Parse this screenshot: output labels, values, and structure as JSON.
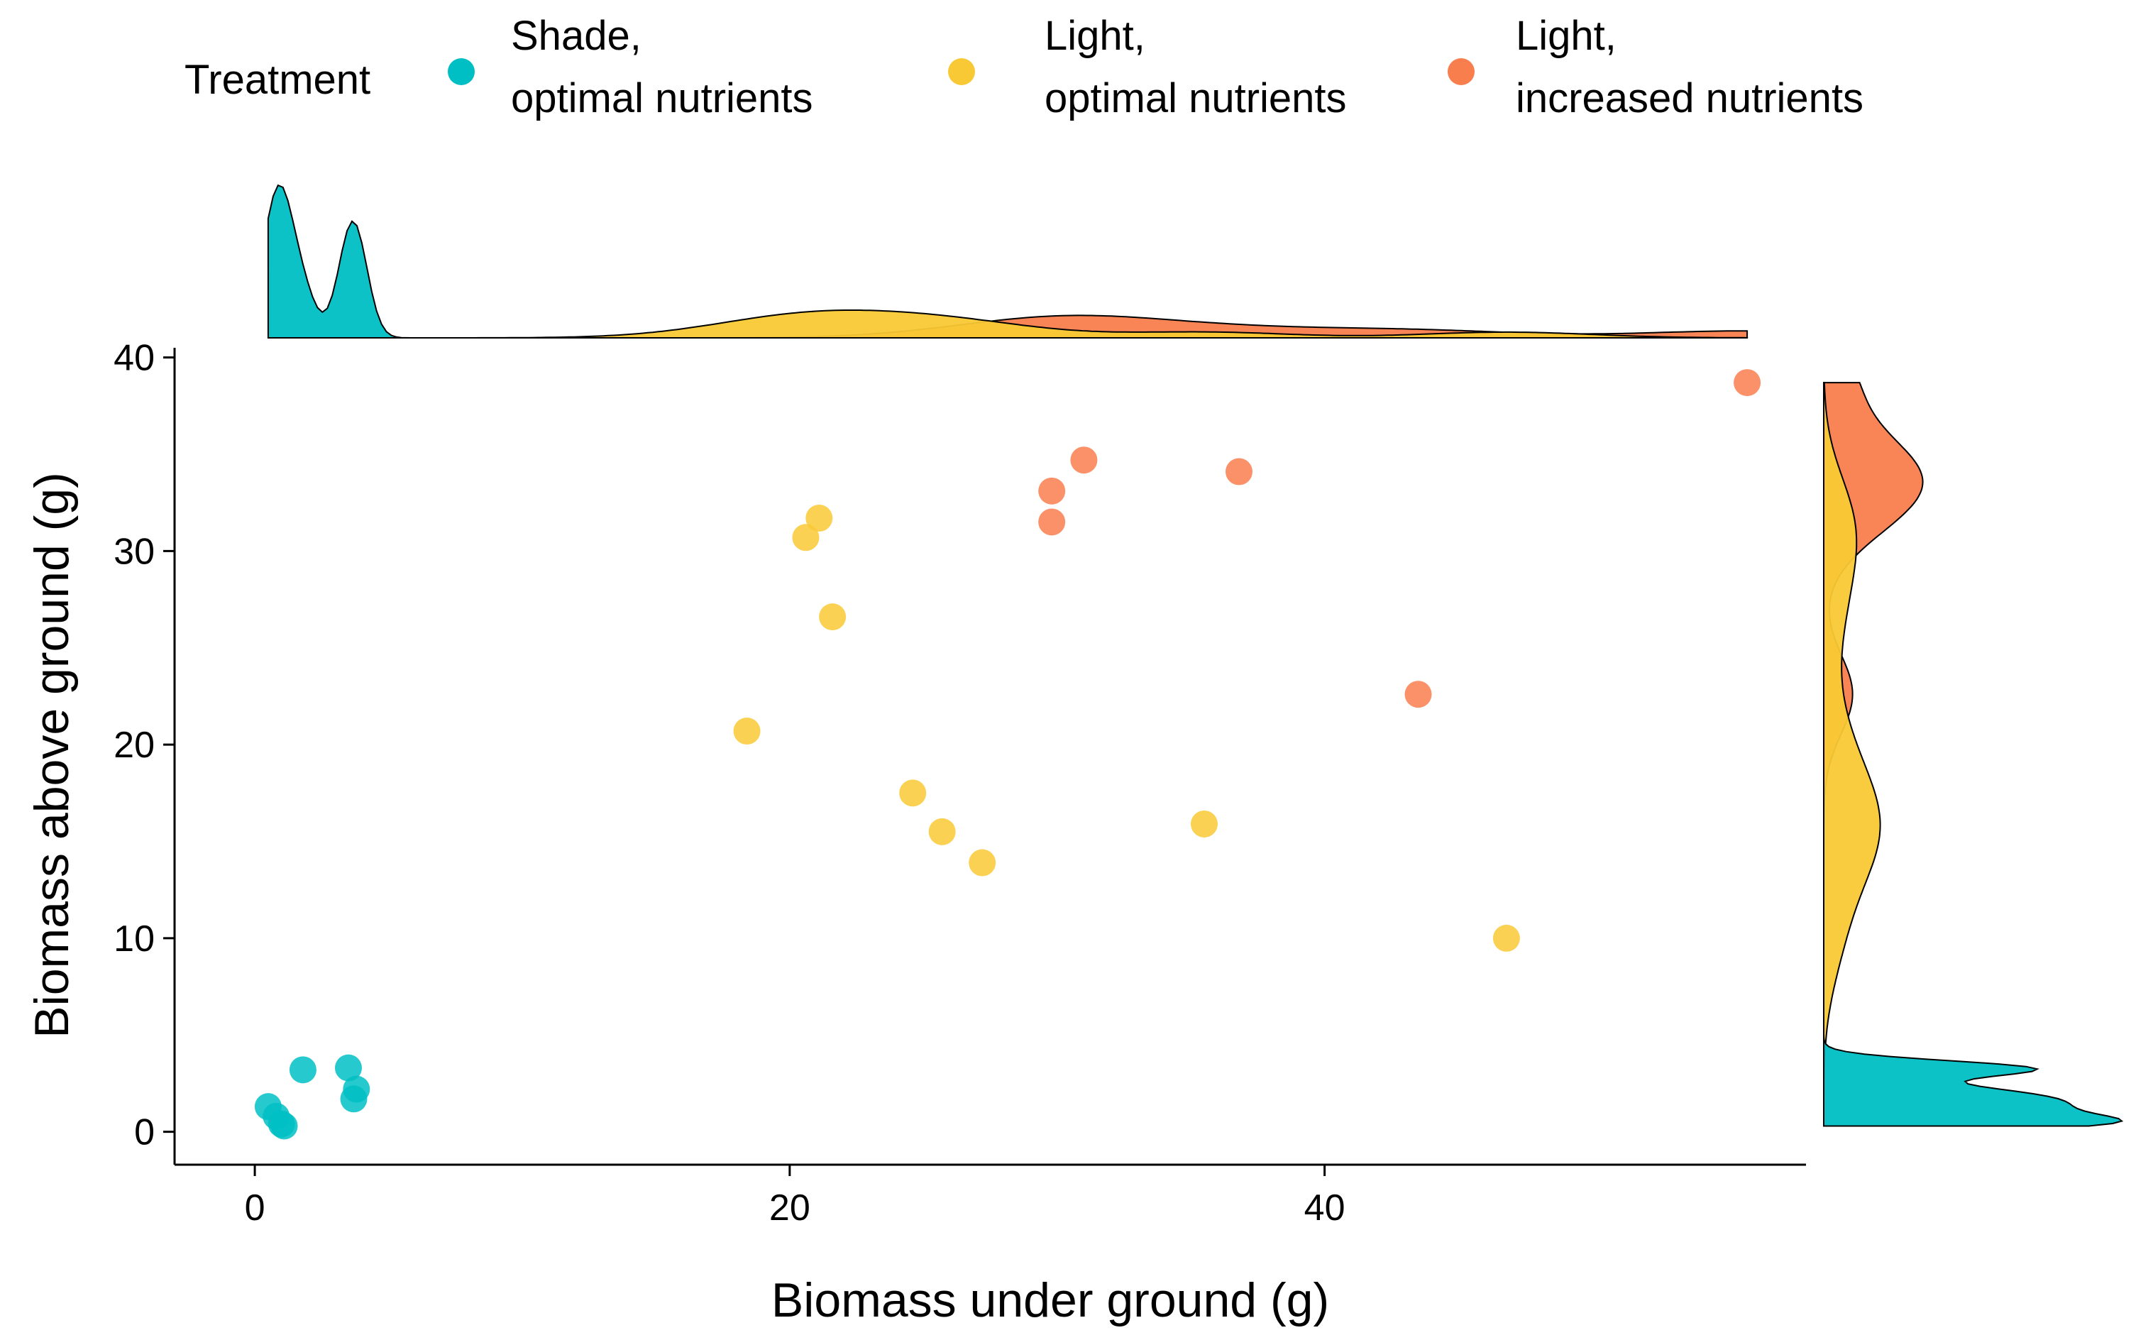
{
  "chart_data": {
    "type": "scatter",
    "title": "",
    "xlabel": "Biomass under ground (g)",
    "ylabel": "Biomass above ground (g)",
    "xlim": [
      -3,
      58
    ],
    "ylim": [
      -1.7,
      40.5
    ],
    "xticks": [
      0,
      20,
      40
    ],
    "yticks": [
      0,
      10,
      20,
      30,
      40
    ],
    "grid": false,
    "legend": {
      "title": "Treatment",
      "position": "top"
    },
    "marginal": {
      "top": "density",
      "right": "density"
    },
    "series": [
      {
        "name": "Shade, optimal nutrients",
        "color": "#00BFC4",
        "points": [
          {
            "x": 0.5,
            "y": 1.3
          },
          {
            "x": 0.8,
            "y": 0.8
          },
          {
            "x": 1.0,
            "y": 0.4
          },
          {
            "x": 1.1,
            "y": 0.3
          },
          {
            "x": 1.8,
            "y": 3.2
          },
          {
            "x": 3.5,
            "y": 3.3
          },
          {
            "x": 3.8,
            "y": 2.2
          },
          {
            "x": 3.7,
            "y": 1.7
          }
        ]
      },
      {
        "name": "Light, optimal nutrients",
        "color": "#F9C935",
        "points": [
          {
            "x": 18.4,
            "y": 20.7
          },
          {
            "x": 20.6,
            "y": 30.7
          },
          {
            "x": 21.1,
            "y": 31.7
          },
          {
            "x": 21.6,
            "y": 26.6
          },
          {
            "x": 24.6,
            "y": 17.5
          },
          {
            "x": 25.7,
            "y": 15.5
          },
          {
            "x": 27.2,
            "y": 13.9
          },
          {
            "x": 35.5,
            "y": 15.9
          },
          {
            "x": 46.8,
            "y": 10.0
          }
        ]
      },
      {
        "name": "Light, increased nutrients",
        "color": "#F97E4E",
        "points": [
          {
            "x": 29.8,
            "y": 33.1
          },
          {
            "x": 29.8,
            "y": 31.5
          },
          {
            "x": 31.0,
            "y": 34.7
          },
          {
            "x": 36.8,
            "y": 34.1
          },
          {
            "x": 43.5,
            "y": 22.6
          },
          {
            "x": 55.8,
            "y": 38.7
          }
        ]
      }
    ]
  }
}
